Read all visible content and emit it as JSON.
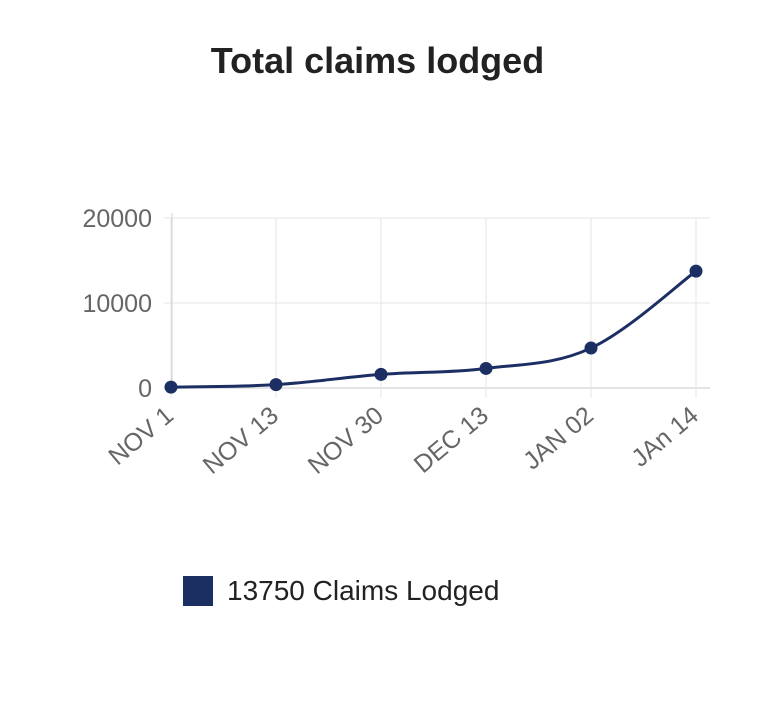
{
  "chart_data": {
    "type": "line",
    "title": "Total claims lodged",
    "categories": [
      "NOV 1",
      "NOV 13",
      "NOV 30",
      "DEC 13",
      "JAN 02",
      "JAn 14"
    ],
    "series": [
      {
        "name": "13750 Claims Lodged",
        "values": [
          100,
          400,
          1600,
          2300,
          4700,
          13750
        ],
        "color": "#1b2f63"
      }
    ],
    "y_ticks": [
      0,
      10000,
      20000
    ],
    "ylim": [
      0,
      20000
    ],
    "grid": true,
    "legend_position": "bottom"
  }
}
